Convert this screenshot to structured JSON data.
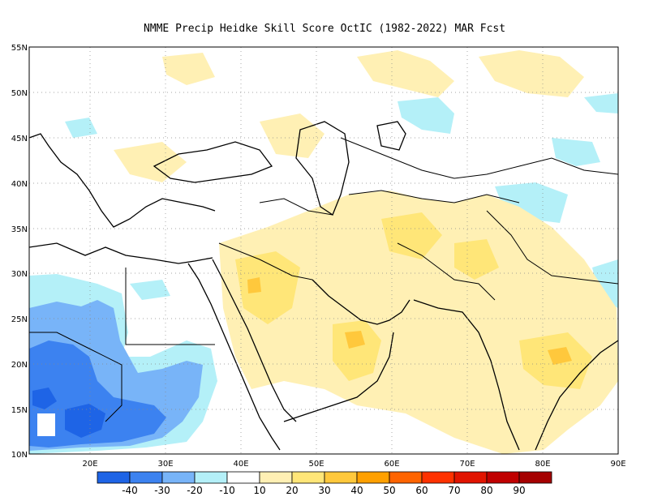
{
  "title": "NMME Precip Heidke Skill Score OctIC (1982-2022) MAR Fcst",
  "map": {
    "lat_labels": [
      "55N",
      "50N",
      "45N",
      "40N",
      "35N",
      "30N",
      "25N",
      "20N",
      "15N",
      "10N"
    ],
    "lon_labels": [
      "20E",
      "30E",
      "40E",
      "50E",
      "60E",
      "70E",
      "80E",
      "90E"
    ],
    "lat_range": [
      10,
      55
    ],
    "lon_range": [
      12,
      90
    ],
    "grid": "dotted"
  },
  "colorbar": {
    "labels": [
      "-40",
      "-30",
      "-20",
      "-10",
      "10",
      "20",
      "30",
      "40",
      "50",
      "60",
      "70",
      "80",
      "90"
    ],
    "colors": [
      "#1e64e6",
      "#3c82f0",
      "#78b4f8",
      "#b4f0f8",
      "#ffffff",
      "#fff0b4",
      "#ffe678",
      "#ffc83c",
      "#ffa000",
      "#ff6400",
      "#ff3200",
      "#e11400",
      "#c00000",
      "#a50000"
    ]
  },
  "colors": {
    "land_outline": "#000000",
    "neg_light": "#b4f0f8",
    "neg_mid": "#78b4f8",
    "neg_strong": "#3c82f0",
    "neg_deep": "#1e64e6",
    "pos_light": "#fff0b4",
    "pos_mid": "#ffe678",
    "pos_strong": "#ffc83c",
    "pos_deep": "#ffa000"
  }
}
